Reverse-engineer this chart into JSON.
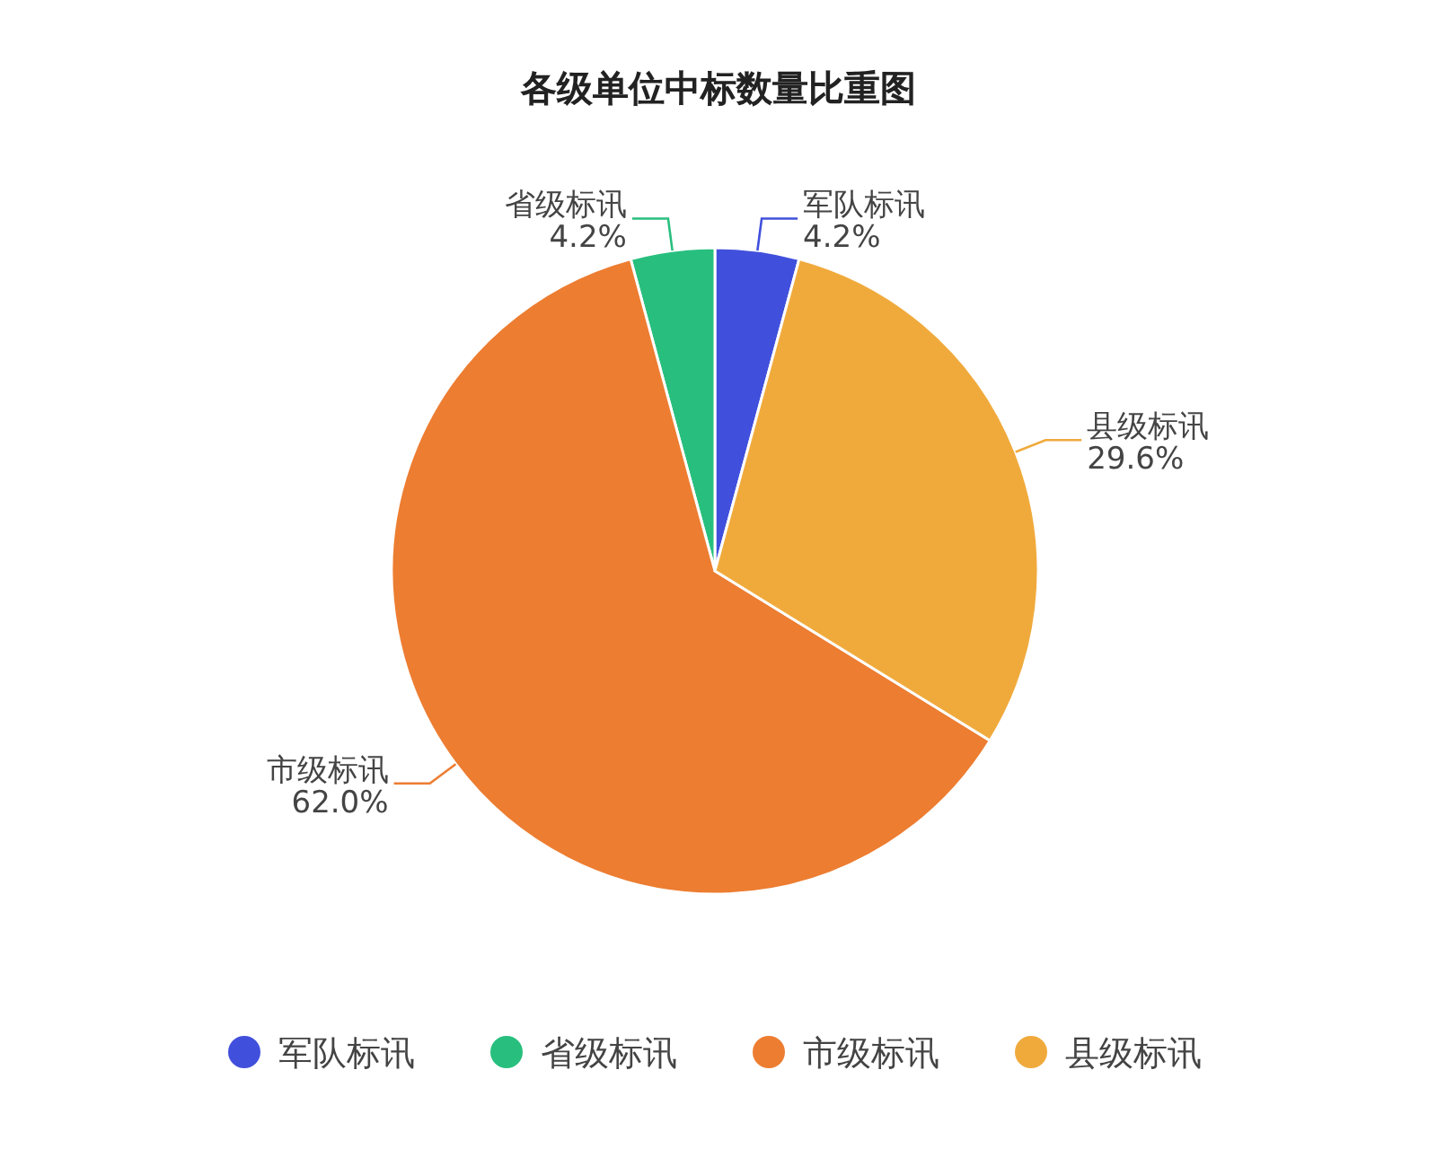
{
  "chart_data": {
    "type": "pie",
    "title": "各级单位中标数量比重图",
    "categories": [
      "军队标讯",
      "省级标讯",
      "市级标讯",
      "县级标讯"
    ],
    "values": [
      4.2,
      4.2,
      62.0,
      29.6
    ],
    "colors": [
      "#4150dc",
      "#28bf7e",
      "#ed7d31",
      "#f0aa3c"
    ],
    "value_labels": [
      "4.2%",
      "4.2%",
      "62.0%",
      "29.6%"
    ],
    "legend": "bottom"
  }
}
